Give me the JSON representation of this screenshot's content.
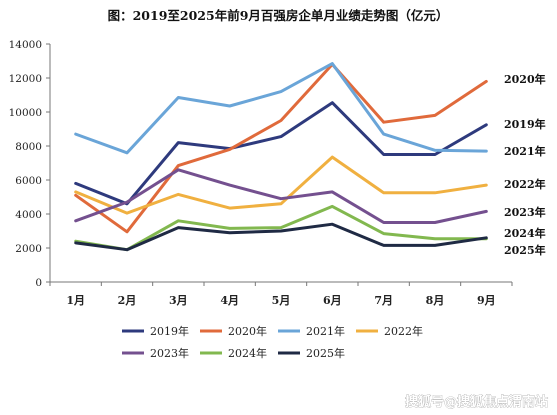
{
  "chart_data": {
    "type": "line",
    "title": "图：2019至2025年前9月百强房企单月业绩走势图（亿元）",
    "categories": [
      "1月",
      "2月",
      "3月",
      "4月",
      "5月",
      "6月",
      "7月",
      "8月",
      "9月"
    ],
    "ylim": [
      0,
      14000
    ],
    "yticks": [
      0,
      2000,
      4000,
      6000,
      8000,
      10000,
      12000,
      14000
    ],
    "grid": false,
    "legend_position": "bottom",
    "series": [
      {
        "name": "2019年",
        "end_label": "2019年",
        "color": "#2e3a7d",
        "values": [
          5800,
          4600,
          8200,
          7850,
          8550,
          10550,
          7500,
          7500,
          9250
        ]
      },
      {
        "name": "2020年",
        "end_label": "2020年",
        "color": "#e06a3b",
        "values": [
          5100,
          2950,
          6850,
          7800,
          9500,
          12800,
          9400,
          9800,
          11800
        ]
      },
      {
        "name": "2021年",
        "end_label": "2021年",
        "color": "#6aa5d8",
        "values": [
          8700,
          7600,
          10850,
          10350,
          11200,
          12850,
          8700,
          7750,
          7700
        ]
      },
      {
        "name": "2022年",
        "end_label": "2022年",
        "color": "#f0b040",
        "values": [
          5300,
          4050,
          5150,
          4350,
          4600,
          7350,
          5250,
          5250,
          5700
        ]
      },
      {
        "name": "2023年",
        "end_label": "2023年",
        "color": "#74508f",
        "values": [
          3600,
          4700,
          6600,
          5700,
          4900,
          5300,
          3500,
          3500,
          4150
        ]
      },
      {
        "name": "2024年",
        "end_label": "2024年",
        "color": "#82b84f",
        "values": [
          2400,
          1900,
          3600,
          3150,
          3200,
          4450,
          2850,
          2550,
          2550
        ]
      },
      {
        "name": "2025年",
        "end_label": "2025年",
        "color": "#1f2a44",
        "values": [
          2300,
          1900,
          3200,
          2900,
          3000,
          3400,
          2150,
          2150,
          2600
        ]
      }
    ]
  },
  "watermark": "搜狐号@搜狐焦点渭南站"
}
